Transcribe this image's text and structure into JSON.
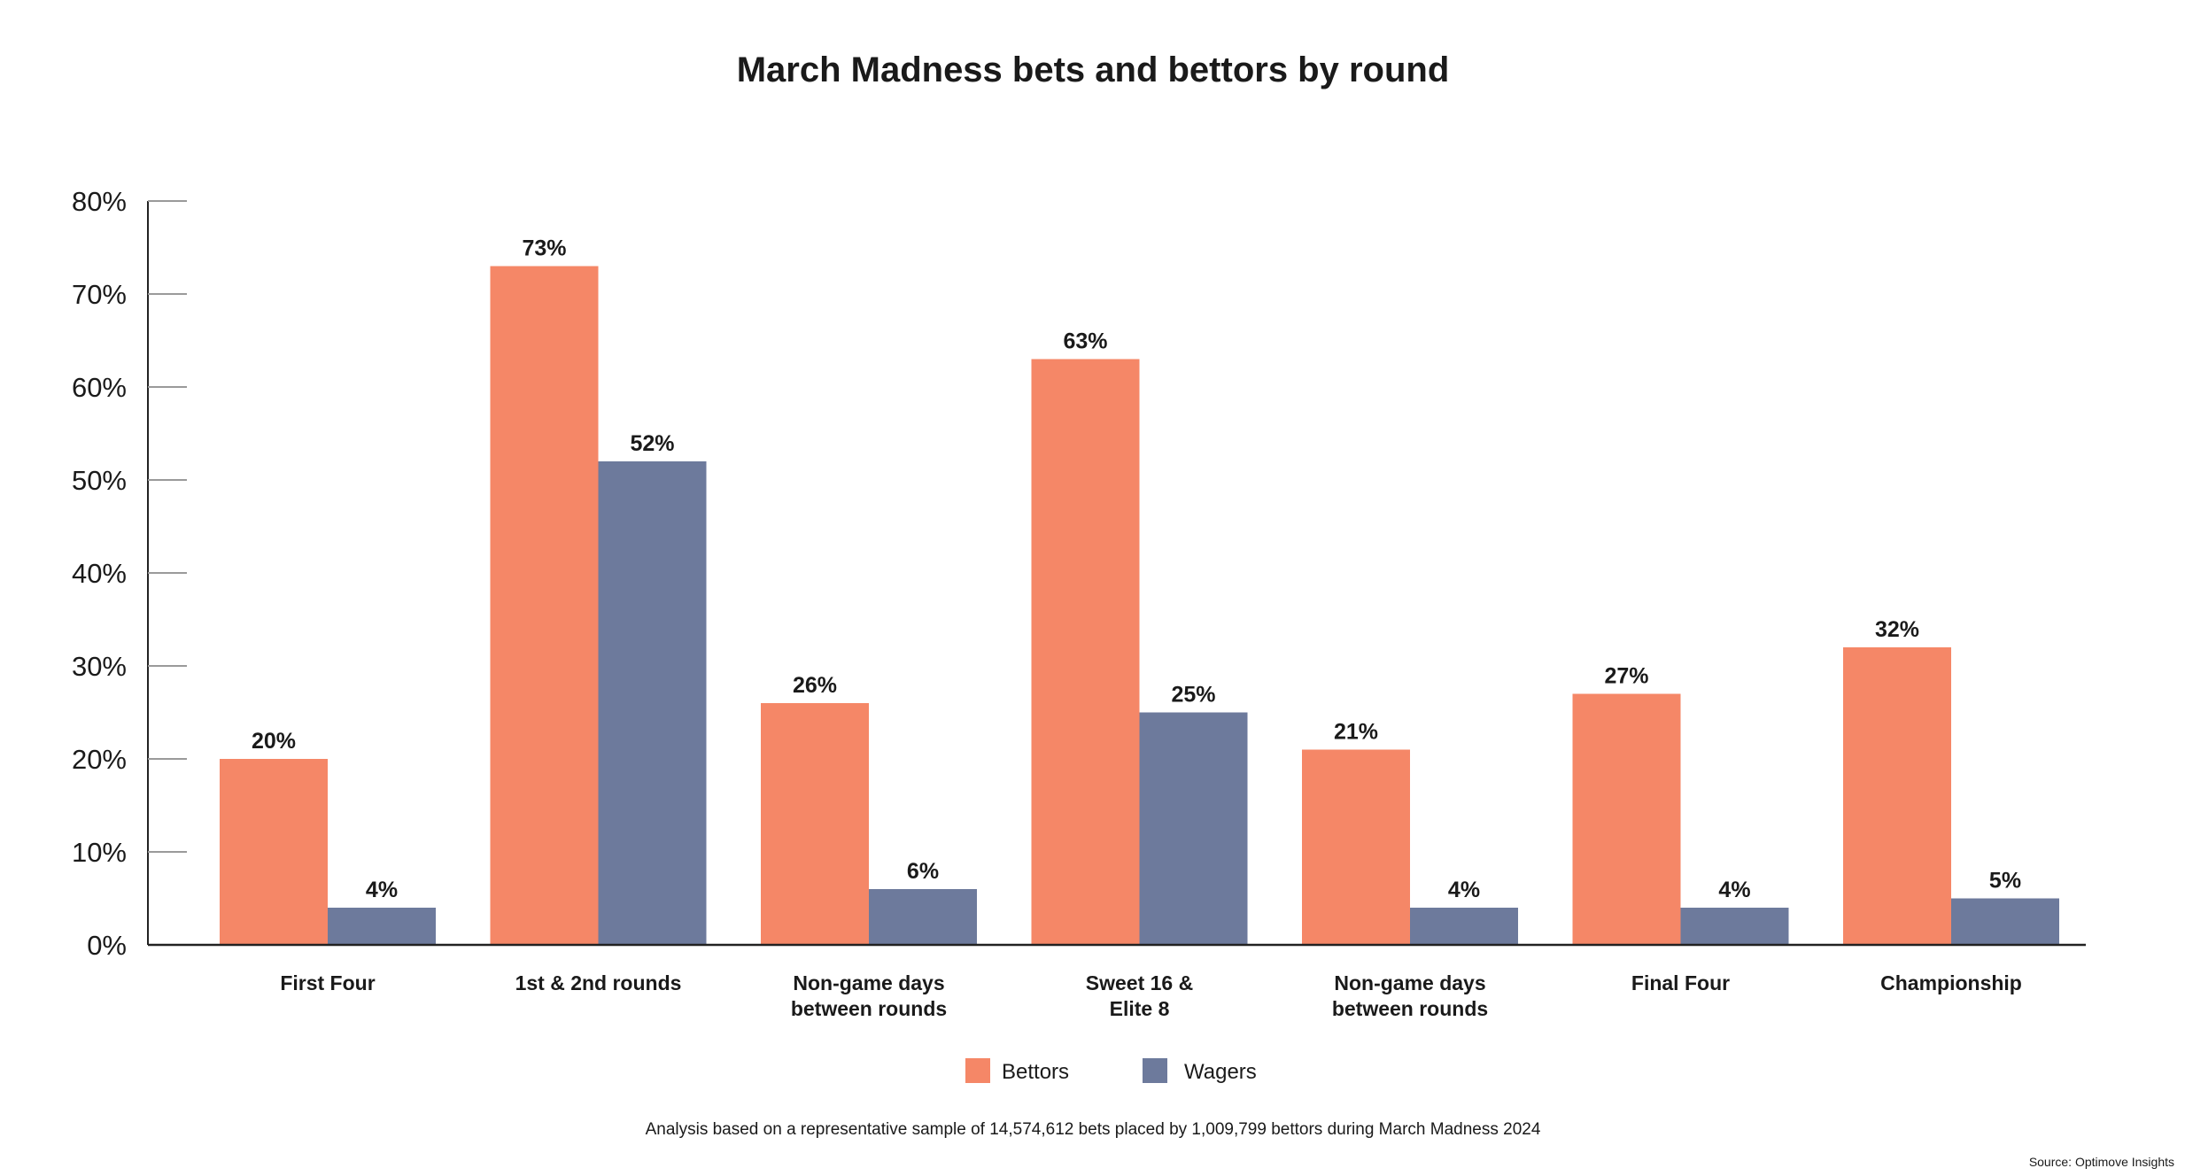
{
  "chart_data": {
    "type": "bar",
    "title": "March Madness bets and bettors by round",
    "categories": [
      [
        "First Four"
      ],
      [
        "1st & 2nd rounds"
      ],
      [
        "Non-game days",
        "between rounds"
      ],
      [
        "Sweet 16 &",
        "Elite 8"
      ],
      [
        "Non-game days",
        "between rounds"
      ],
      [
        "Final Four"
      ],
      [
        "Championship"
      ]
    ],
    "series": [
      {
        "name": "Bettors",
        "color": "#f58767",
        "values": [
          20,
          73,
          26,
          63,
          21,
          27,
          32
        ]
      },
      {
        "name": "Wagers",
        "color": "#6d7a9c",
        "values": [
          4,
          52,
          6,
          25,
          4,
          4,
          5
        ]
      }
    ],
    "data_labels": [
      [
        "20%",
        "73%",
        "26%",
        "63%",
        "21%",
        "27%",
        "32%"
      ],
      [
        "4%",
        "52%",
        "6%",
        "25%",
        "4%",
        "4%",
        "5%"
      ]
    ],
    "y_ticks": [
      "0%",
      "10%",
      "20%",
      "30%",
      "40%",
      "50%",
      "60%",
      "70%",
      "80%"
    ],
    "ylim": [
      0,
      80
    ],
    "xlabel": "",
    "ylabel": "",
    "grid": false,
    "legend_position": "bottom-center",
    "note": "Analysis based on a representative sample of 14,574,612 bets placed by 1,009,799 bettors during March Madness 2024",
    "source": "Source: Optimove Insights"
  }
}
